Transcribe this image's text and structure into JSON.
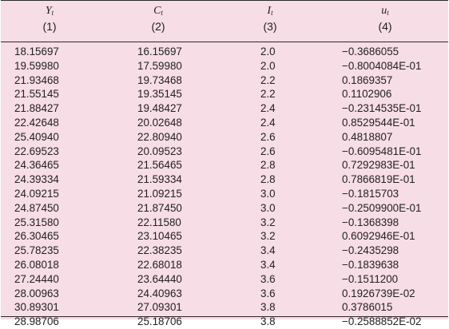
{
  "header": {
    "col1": {
      "symbol": "Y",
      "sub": "t",
      "number": "(1)"
    },
    "col2": {
      "symbol": "C",
      "sub": "t",
      "number": "(2)"
    },
    "col3": {
      "symbol": "I",
      "sub": "t",
      "number": "(3)"
    },
    "col4": {
      "symbol": "u",
      "sub": "t",
      "number": "(4)"
    }
  },
  "rows": [
    [
      "18.15697",
      "16.15697",
      "2.0",
      "−0.3686055"
    ],
    [
      "19.59980",
      "17.59980",
      "2.0",
      "−0.8004084E-01"
    ],
    [
      "21.93468",
      "19.73468",
      "2.2",
      "0.1869357"
    ],
    [
      "21.55145",
      "19.35145",
      "2.2",
      "0.1102906"
    ],
    [
      "21.88427",
      "19.48427",
      "2.4",
      "−0.2314535E-01"
    ],
    [
      "22.42648",
      "20.02648",
      "2.4",
      "0.8529544E-01"
    ],
    [
      "25.40940",
      "22.80940",
      "2.6",
      "0.4818807"
    ],
    [
      "22.69523",
      "20.09523",
      "2.6",
      "−0.6095481E-01"
    ],
    [
      "24.36465",
      "21.56465",
      "2.8",
      "0.7292983E-01"
    ],
    [
      "24.39334",
      "21.59334",
      "2.8",
      "0.7866819E-01"
    ],
    [
      "24.09215",
      "21.09215",
      "3.0",
      "−0.1815703"
    ],
    [
      "24.87450",
      "21.87450",
      "3.0",
      "−0.2509900E-01"
    ],
    [
      "25.31580",
      "22.11580",
      "3.2",
      "−0.1368398"
    ],
    [
      "26.30465",
      "23.10465",
      "3.2",
      "0.6092946E-01"
    ],
    [
      "25.78235",
      "22.38235",
      "3.4",
      "−0.2435298"
    ],
    [
      "26.08018",
      "22.68018",
      "3.4",
      "−0.1839638"
    ],
    [
      "27.24440",
      "23.64440",
      "3.6",
      "−0.1511200"
    ],
    [
      "28.00963",
      "24.40963",
      "3.6",
      "0.1926739E-02"
    ],
    [
      "30.89301",
      "27.09301",
      "3.8",
      "0.3786015"
    ],
    [
      "28.98706",
      "25.18706",
      "3.8",
      "−0.2588852E-02"
    ]
  ]
}
